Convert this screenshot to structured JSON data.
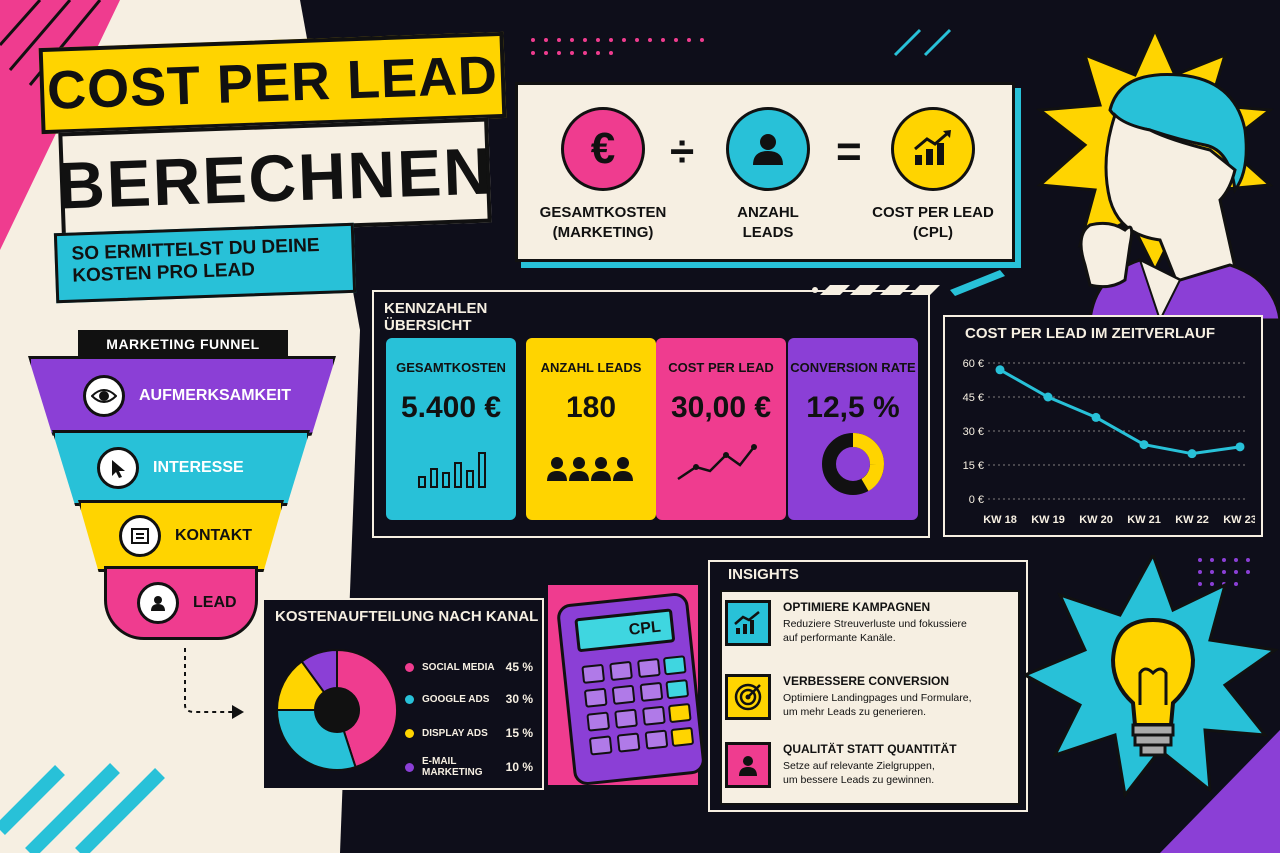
{
  "title": {
    "line1": "COST PER LEAD",
    "line2": "BERECHNEN",
    "subtitle_1": "SO ERMITTELST DU DEINE",
    "subtitle_2": "KOSTEN PRO LEAD"
  },
  "formula": {
    "a_label_1": "GESAMTKOSTEN",
    "a_label_2": "(MARKETING)",
    "b_label_1": "ANZAHL",
    "b_label_2": "LEADS",
    "c_label_1": "COST PER LEAD",
    "c_label_2": "(CPL)",
    "op_divide": "÷",
    "op_equals": "=",
    "euro_symbol": "€"
  },
  "funnel": {
    "title": "MARKETING FUNNEL",
    "stages": [
      {
        "label": "AUFMERKSAMKEIT",
        "icon": "eye-icon",
        "color": "#8b3fd6"
      },
      {
        "label": "INTERESSE",
        "icon": "cursor-icon",
        "color": "#28c1d8"
      },
      {
        "label": "KONTAKT",
        "icon": "form-icon",
        "color": "#ffd400"
      },
      {
        "label": "LEAD",
        "icon": "user-icon",
        "color": "#ef3c8f"
      }
    ]
  },
  "kpis": {
    "title": "KENNZAHLEN ÜBERSICHT",
    "cards": [
      {
        "label": "GESAMTKOSTEN",
        "value": "5.400 €",
        "color": "#28c1d8",
        "graphic": "bar-chart-icon"
      },
      {
        "label": "ANZAHL LEADS",
        "value": "180",
        "color": "#ffd400",
        "graphic": "people-icon"
      },
      {
        "label": "COST PER LEAD",
        "value": "30,00 €",
        "color": "#ef3c8f",
        "graphic": "trend-line-icon"
      },
      {
        "label": "CONVERSION RATE",
        "value": "12,5 %",
        "color": "#8b3fd6",
        "graphic": "donut-icon"
      }
    ]
  },
  "chart_data": [
    {
      "type": "line",
      "title": "COST PER LEAD IM ZEITVERLAUF",
      "categories": [
        "KW 18",
        "KW 19",
        "KW 20",
        "KW 21",
        "KW 22",
        "KW 23"
      ],
      "values": [
        57,
        45,
        36,
        24,
        20,
        23
      ],
      "yticks": [
        "0 €",
        "15 €",
        "30 €",
        "45 €",
        "60 €"
      ],
      "ylim": [
        0,
        60
      ],
      "color": "#28c1d8"
    },
    {
      "type": "pie",
      "title": "KOSTENAUFTEILUNG NACH KANAL",
      "slices": [
        {
          "name": "SOCIAL MEDIA",
          "value": 45,
          "label": "45 %",
          "color": "#ef3c8f"
        },
        {
          "name": "GOOGLE ADS",
          "value": 30,
          "label": "30 %",
          "color": "#28c1d8"
        },
        {
          "name": "DISPLAY ADS",
          "value": 15,
          "label": "15 %",
          "color": "#ffd400"
        },
        {
          "name": "E-MAIL MARKETING",
          "value": 10,
          "label": "10 %",
          "color": "#8b3fd6"
        }
      ]
    }
  ],
  "calculator": {
    "screen": "CPL"
  },
  "insights": {
    "title": "INSIGHTS",
    "items": [
      {
        "head": "OPTIMIERE KAMPAGNEN",
        "body_1": "Reduziere Streuverluste und fokussiere",
        "body_2": "auf performante Kanäle.",
        "icon": "growth-chart-icon",
        "color": "#28c1d8"
      },
      {
        "head": "VERBESSERE CONVERSION",
        "body_1": "Optimiere Landingpages und Formulare,",
        "body_2": "um mehr Leads zu generieren.",
        "icon": "target-icon",
        "color": "#ffd400"
      },
      {
        "head": "QUALITÄT STATT QUANTITÄT",
        "body_1": "Setze auf relevante Zielgruppen,",
        "body_2": "um bessere Leads zu gewinnen.",
        "icon": "user-icon",
        "color": "#ef3c8f"
      }
    ]
  }
}
